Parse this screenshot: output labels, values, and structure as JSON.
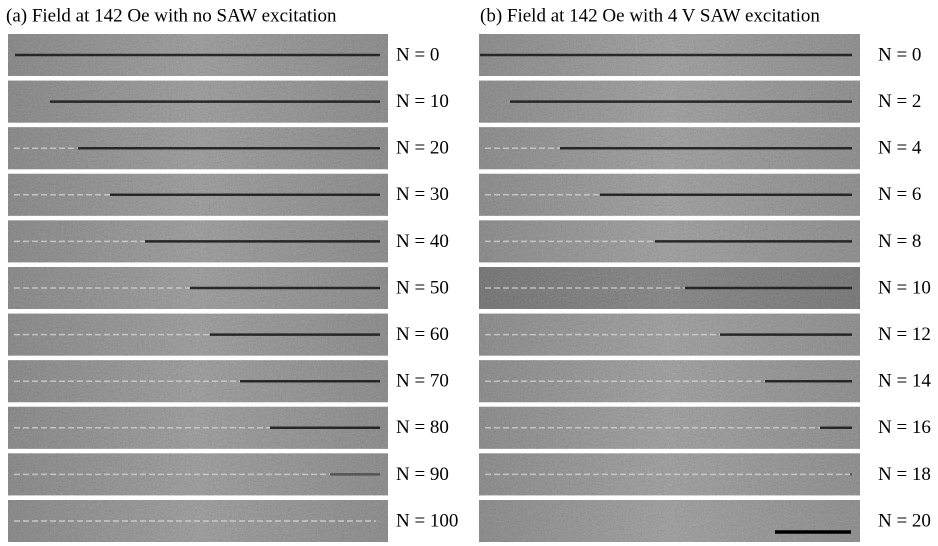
{
  "panels": [
    {
      "title": "(a) Field at 142 Oe with no SAW excitation",
      "rows": [
        "N = 0",
        "N = 10",
        "N = 20",
        "N = 30",
        "N = 40",
        "N = 50",
        "N = 60",
        "N = 70",
        "N = 80",
        "N = 90",
        "N = 100"
      ]
    },
    {
      "title": "(b) Field at 142 Oe with 4 V SAW excitation",
      "rows": [
        "N = 0",
        "N = 2",
        "N = 4",
        "N = 6",
        "N = 8",
        "N = 10",
        "N = 12",
        "N = 14",
        "N = 16",
        "N = 18",
        "N = 20"
      ]
    }
  ]
}
